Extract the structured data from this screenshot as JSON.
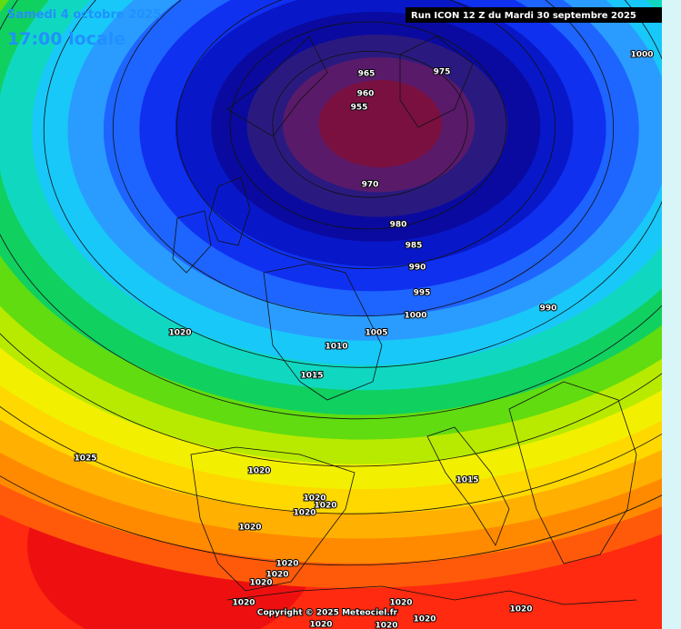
{
  "header": {
    "valid_date": "Samedi 4 octobre 2025",
    "local_time": "17:00 locale",
    "run": "Run ICON 12 Z du Mardi 30 septembre 2025"
  },
  "isobar_labels": [
    965,
    975,
    1000,
    960,
    955,
    970,
    980,
    985,
    990,
    995,
    1000,
    990,
    1020,
    1005,
    1010,
    1015,
    1025,
    1020,
    1015,
    1020,
    1020,
    1020,
    1020,
    1020,
    1020,
    1020,
    1020,
    1020,
    1020,
    1020,
    1020,
    1020
  ],
  "copyright": "Copyright © 2025 Meteociel.fr"
}
